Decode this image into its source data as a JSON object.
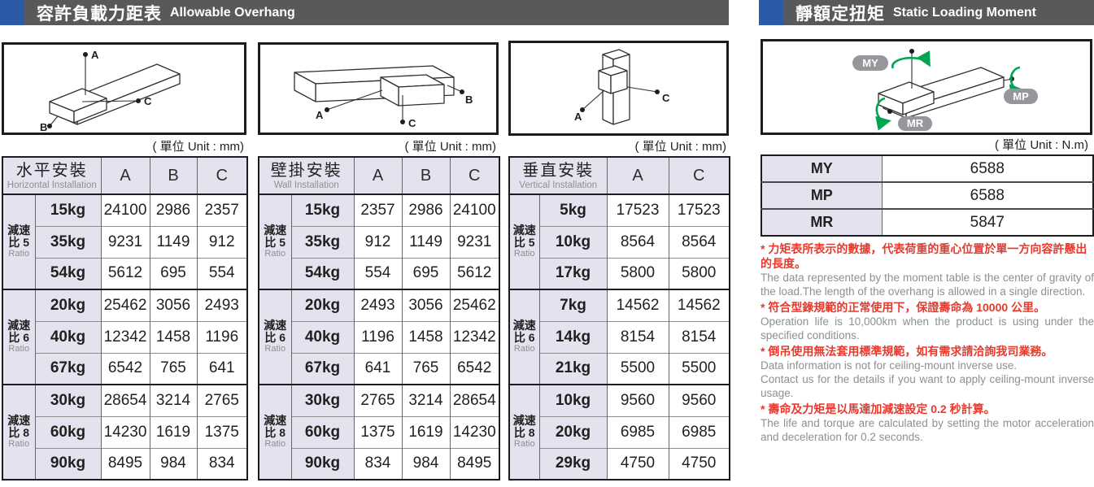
{
  "sections": {
    "overhang": {
      "title_zh": "容許負載力距表",
      "title_en": "Allowable Overhang"
    },
    "moment": {
      "title_zh": "靜額定扭矩",
      "title_en": "Static Loading Moment"
    }
  },
  "units": {
    "mm": "( 單位 Unit : mm)",
    "nm": "( 單位 Unit : N.m)"
  },
  "diagram_labels": {
    "a": "A",
    "b": "B",
    "c": "C",
    "my": "MY",
    "mp": "MP",
    "mr": "MR"
  },
  "overhang_tables": [
    {
      "name_zh": "水平安裝",
      "name_en": "Horizontal Installation",
      "columns": [
        "A",
        "B",
        "C"
      ],
      "groups": [
        {
          "ratio_zh_a": "減速",
          "ratio_zh_b": "比 5",
          "ratio_en": "Ratio",
          "rows": [
            {
              "load": "15kg",
              "values": [
                "24100",
                "2986",
                "2357"
              ]
            },
            {
              "load": "35kg",
              "values": [
                "9231",
                "1149",
                "912"
              ]
            },
            {
              "load": "54kg",
              "values": [
                "5612",
                "695",
                "554"
              ]
            }
          ]
        },
        {
          "ratio_zh_a": "減速",
          "ratio_zh_b": "比 6",
          "ratio_en": "Ratio",
          "rows": [
            {
              "load": "20kg",
              "values": [
                "25462",
                "3056",
                "2493"
              ]
            },
            {
              "load": "40kg",
              "values": [
                "12342",
                "1458",
                "1196"
              ]
            },
            {
              "load": "67kg",
              "values": [
                "6542",
                "765",
                "641"
              ]
            }
          ]
        },
        {
          "ratio_zh_a": "減速",
          "ratio_zh_b": "比 8",
          "ratio_en": "Ratio",
          "rows": [
            {
              "load": "30kg",
              "values": [
                "28654",
                "3214",
                "2765"
              ]
            },
            {
              "load": "60kg",
              "values": [
                "14230",
                "1619",
                "1375"
              ]
            },
            {
              "load": "90kg",
              "values": [
                "8495",
                "984",
                "834"
              ]
            }
          ]
        }
      ]
    },
    {
      "name_zh": "壁掛安裝",
      "name_en": "Wall Installation",
      "columns": [
        "A",
        "B",
        "C"
      ],
      "groups": [
        {
          "ratio_zh_a": "減速",
          "ratio_zh_b": "比 5",
          "ratio_en": "Ratio",
          "rows": [
            {
              "load": "15kg",
              "values": [
                "2357",
                "2986",
                "24100"
              ]
            },
            {
              "load": "35kg",
              "values": [
                "912",
                "1149",
                "9231"
              ]
            },
            {
              "load": "54kg",
              "values": [
                "554",
                "695",
                "5612"
              ]
            }
          ]
        },
        {
          "ratio_zh_a": "減速",
          "ratio_zh_b": "比 6",
          "ratio_en": "Ratio",
          "rows": [
            {
              "load": "20kg",
              "values": [
                "2493",
                "3056",
                "25462"
              ]
            },
            {
              "load": "40kg",
              "values": [
                "1196",
                "1458",
                "12342"
              ]
            },
            {
              "load": "67kg",
              "values": [
                "641",
                "765",
                "6542"
              ]
            }
          ]
        },
        {
          "ratio_zh_a": "減速",
          "ratio_zh_b": "比 8",
          "ratio_en": "Ratio",
          "rows": [
            {
              "load": "30kg",
              "values": [
                "2765",
                "3214",
                "28654"
              ]
            },
            {
              "load": "60kg",
              "values": [
                "1375",
                "1619",
                "14230"
              ]
            },
            {
              "load": "90kg",
              "values": [
                "834",
                "984",
                "8495"
              ]
            }
          ]
        }
      ]
    },
    {
      "name_zh": "垂直安裝",
      "name_en": "Vertical Installation",
      "columns": [
        "A",
        "C"
      ],
      "groups": [
        {
          "ratio_zh_a": "減速",
          "ratio_zh_b": "比 5",
          "ratio_en": "Ratio",
          "rows": [
            {
              "load": "5kg",
              "values": [
                "17523",
                "17523"
              ]
            },
            {
              "load": "10kg",
              "values": [
                "8564",
                "8564"
              ]
            },
            {
              "load": "17kg",
              "values": [
                "5800",
                "5800"
              ]
            }
          ]
        },
        {
          "ratio_zh_a": "減速",
          "ratio_zh_b": "比 6",
          "ratio_en": "Ratio",
          "rows": [
            {
              "load": "7kg",
              "values": [
                "14562",
                "14562"
              ]
            },
            {
              "load": "14kg",
              "values": [
                "8154",
                "8154"
              ]
            },
            {
              "load": "21kg",
              "values": [
                "5500",
                "5500"
              ]
            }
          ]
        },
        {
          "ratio_zh_a": "減速",
          "ratio_zh_b": "比 8",
          "ratio_en": "Ratio",
          "rows": [
            {
              "load": "10kg",
              "values": [
                "9560",
                "9560"
              ]
            },
            {
              "load": "20kg",
              "values": [
                "6985",
                "6985"
              ]
            },
            {
              "load": "29kg",
              "values": [
                "4750",
                "4750"
              ]
            }
          ]
        }
      ]
    }
  ],
  "moment_table": {
    "rows": [
      {
        "label": "MY",
        "value": "6588"
      },
      {
        "label": "MP",
        "value": "6588"
      },
      {
        "label": "MR",
        "value": "5847"
      }
    ]
  },
  "notes": [
    {
      "zh": "* 力矩表所表示的數據，代表荷重的重心位置於單一方向容許懸出的長度。",
      "en": [
        "The data represented by the moment table is the center of gravity of the load.The length of the overhang is allowed in a single direction."
      ]
    },
    {
      "zh": "* 符合型錄規範的正常使用下，保證壽命為 10000 公里。",
      "en": [
        "Operation life is 10,000km when the product is using under the specified conditions."
      ]
    },
    {
      "zh": "* 倒吊使用無法套用標準規範，如有需求請洽詢我司業務。",
      "en": [
        "Data information is not for ceiling-mount inverse use.",
        "Contact us for the details if you want to apply ceiling-mount inverse usage."
      ]
    },
    {
      "zh": "* 壽命及力矩是以馬達加減速設定 0.2 秒計算。",
      "en": [
        "The life and torque are calculated by setting the motor acceleration and deceleration for 0.2 seconds."
      ]
    }
  ],
  "colors": {
    "accent_blue": "#2b5aa7",
    "header_bar": "#58595b",
    "cell_lavender": "#e3e3ef",
    "note_red": "#e8392d",
    "arrow_green": "#00a551",
    "gray_text": "#8d8f92"
  }
}
